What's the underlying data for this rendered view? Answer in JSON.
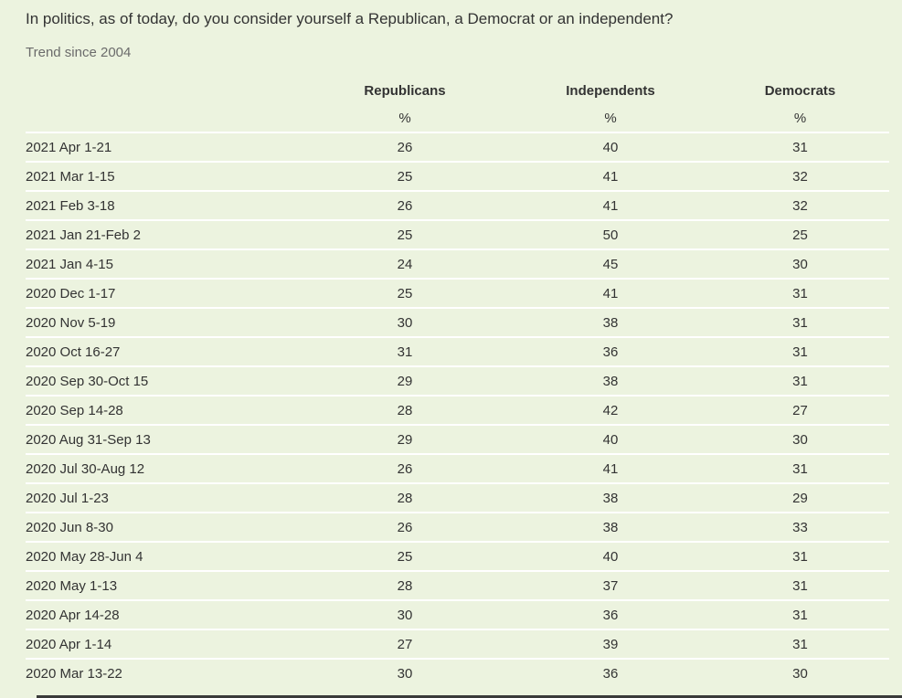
{
  "question": "In politics, as of today, do you consider yourself a Republican, a Democrat or an independent?",
  "subtitle": "Trend since 2004",
  "table": {
    "headers": [
      "Republicans",
      "Independents",
      "Democrats"
    ],
    "units": [
      "%",
      "%",
      "%"
    ],
    "rows": [
      {
        "date": "2021 Apr 1-21",
        "values": [
          "26",
          "40",
          "31"
        ]
      },
      {
        "date": "2021 Mar 1-15",
        "values": [
          "25",
          "41",
          "32"
        ]
      },
      {
        "date": "2021 Feb 3-18",
        "values": [
          "26",
          "41",
          "32"
        ]
      },
      {
        "date": "2021 Jan 21-Feb 2",
        "values": [
          "25",
          "50",
          "25"
        ]
      },
      {
        "date": "2021 Jan 4-15",
        "values": [
          "24",
          "45",
          "30"
        ]
      },
      {
        "date": "2020 Dec 1-17",
        "values": [
          "25",
          "41",
          "31"
        ]
      },
      {
        "date": "2020 Nov 5-19",
        "values": [
          "30",
          "38",
          "31"
        ]
      },
      {
        "date": "2020 Oct 16-27",
        "values": [
          "31",
          "36",
          "31"
        ]
      },
      {
        "date": "2020 Sep 30-Oct 15",
        "values": [
          "29",
          "38",
          "31"
        ]
      },
      {
        "date": "2020 Sep 14-28",
        "values": [
          "28",
          "42",
          "27"
        ]
      },
      {
        "date": "2020 Aug 31-Sep 13",
        "values": [
          "29",
          "40",
          "30"
        ]
      },
      {
        "date": "2020 Jul 30-Aug 12",
        "values": [
          "26",
          "41",
          "31"
        ]
      },
      {
        "date": "2020 Jul 1-23",
        "values": [
          "28",
          "38",
          "29"
        ]
      },
      {
        "date": "2020 Jun 8-30",
        "values": [
          "26",
          "38",
          "33"
        ]
      },
      {
        "date": "2020 May 28-Jun 4",
        "values": [
          "25",
          "40",
          "31"
        ]
      },
      {
        "date": "2020 May 1-13",
        "values": [
          "28",
          "37",
          "31"
        ]
      },
      {
        "date": "2020 Apr 14-28",
        "values": [
          "30",
          "36",
          "31"
        ]
      },
      {
        "date": "2020 Apr 1-14",
        "values": [
          "27",
          "39",
          "31"
        ]
      },
      {
        "date": "2020 Mar 13-22",
        "values": [
          "30",
          "36",
          "30"
        ]
      }
    ]
  },
  "colors": {
    "background": "#ecf3df",
    "row_divider": "#ffffff",
    "text": "#333333",
    "subtitle_text": "#6b6b6b"
  }
}
